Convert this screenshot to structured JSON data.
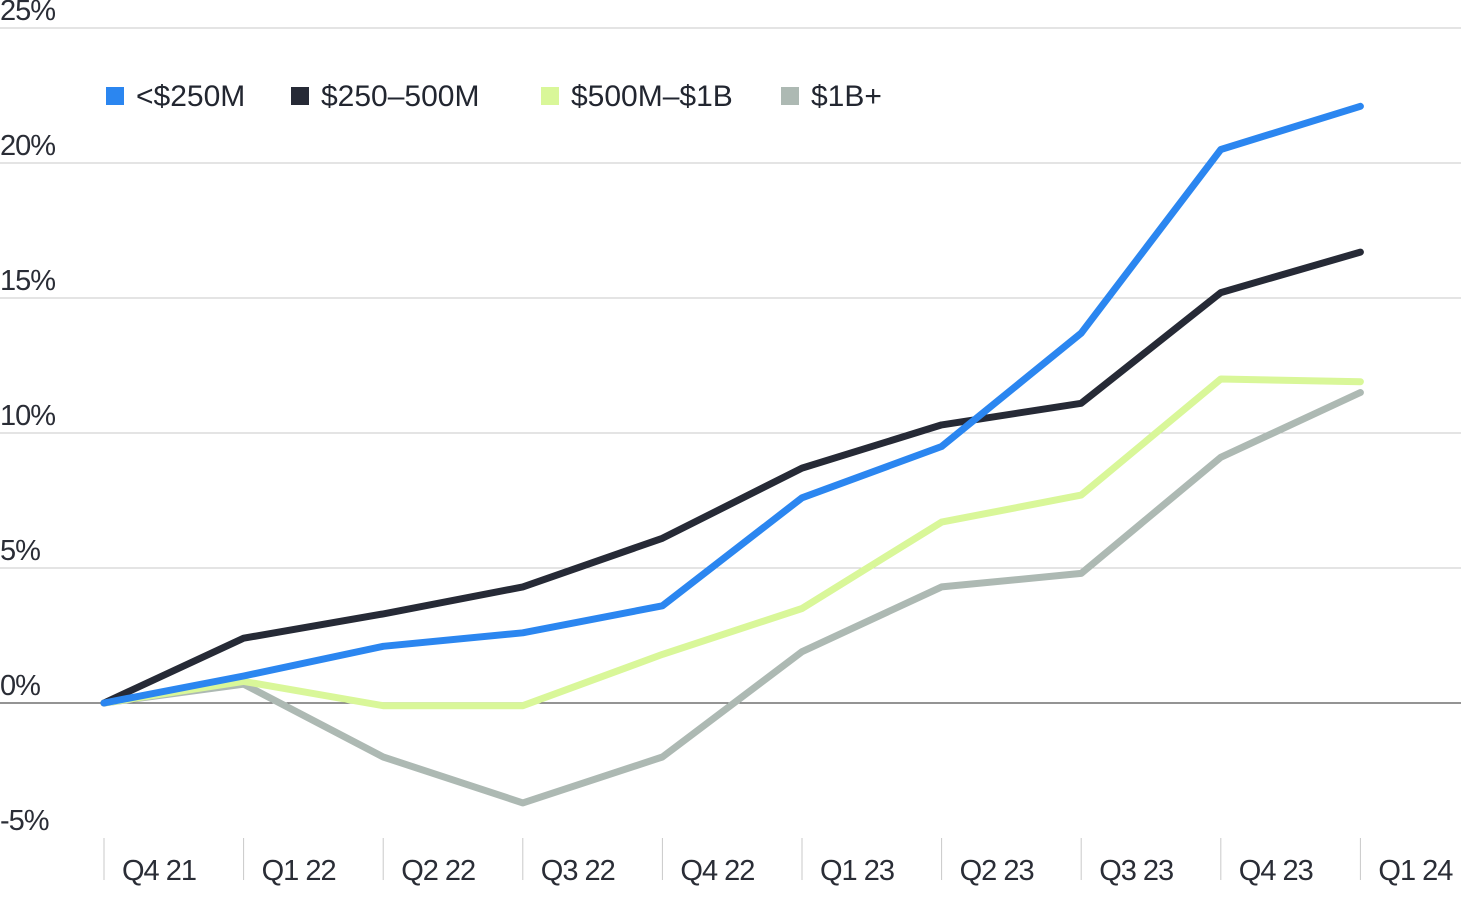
{
  "chart_data": {
    "type": "line",
    "title": "",
    "xlabel": "",
    "ylabel": "",
    "categories": [
      "Q4 21",
      "Q1 22",
      "Q2 22",
      "Q3 22",
      "Q4 22",
      "Q1 23",
      "Q2 23",
      "Q3 23",
      "Q4 23",
      "Q1 24"
    ],
    "ylim": [
      -5,
      25
    ],
    "yticks": [
      -5,
      0,
      5,
      10,
      15,
      20,
      25
    ],
    "ytick_labels": [
      "-5%",
      "0%",
      "5%",
      "10%",
      "15%",
      "20%",
      "25%"
    ],
    "legend_position": "top-left",
    "grid": true,
    "series": [
      {
        "name": "<$250M",
        "color": "#2b86f0",
        "values": [
          0,
          1.0,
          2.1,
          2.6,
          3.6,
          7.6,
          9.5,
          13.7,
          20.5,
          22.1
        ]
      },
      {
        "name": "$250–500M",
        "color": "#262a36",
        "values": [
          0,
          2.4,
          3.3,
          4.3,
          6.1,
          8.7,
          10.3,
          11.1,
          15.2,
          16.7
        ]
      },
      {
        "name": "$500M–$1B",
        "color": "#d9f799",
        "values": [
          0,
          0.8,
          -0.1,
          -0.1,
          1.8,
          3.5,
          6.7,
          7.7,
          12.0,
          11.9
        ]
      },
      {
        "name": "$1B+",
        "color": "#adb9b3",
        "values": [
          0,
          0.7,
          -2.0,
          -3.7,
          -2.0,
          1.9,
          4.3,
          4.8,
          9.1,
          11.5
        ]
      }
    ]
  }
}
